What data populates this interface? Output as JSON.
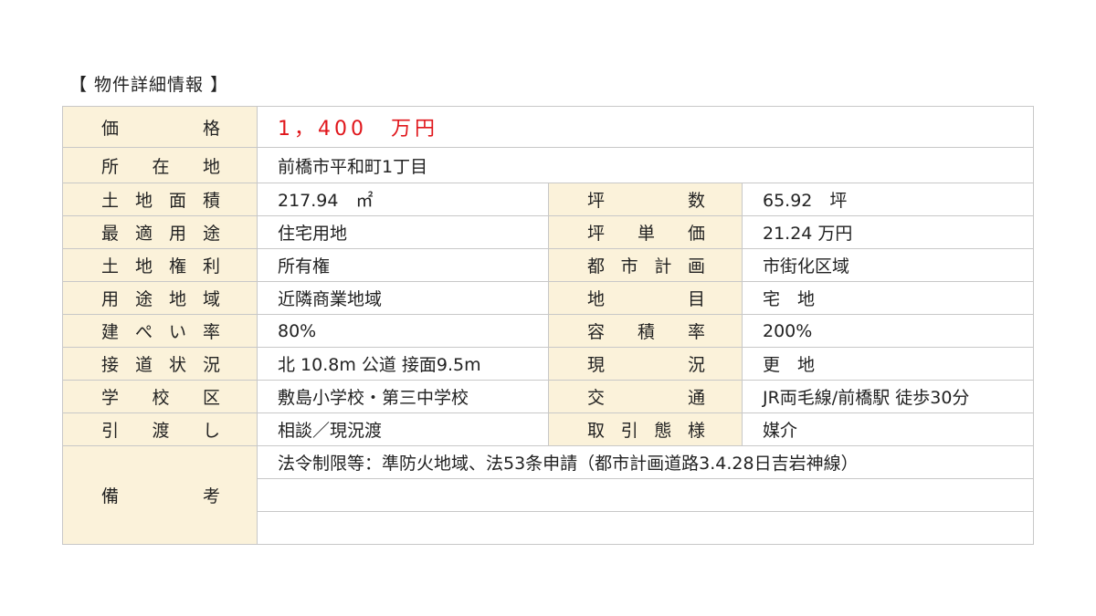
{
  "title": "【 物件詳細情報 】",
  "price": {
    "label": "価格",
    "value": "1，400　万円",
    "color": "#e0161b"
  },
  "address": {
    "label": "所在地",
    "value": "前橋市平和町1丁目"
  },
  "rows": [
    {
      "label1": "土地面積",
      "value1": "217.94　㎡",
      "label2": "坪数",
      "value2": "65.92　坪"
    },
    {
      "label1": "最適用途",
      "value1": "住宅用地",
      "label2": "坪単価",
      "value2": "21.24 万円"
    },
    {
      "label1": "土地権利",
      "value1": "所有権",
      "label2": "都市計画",
      "value2": "市街化区域"
    },
    {
      "label1": "用途地域",
      "value1": "近隣商業地域",
      "label2": "地目",
      "value2": "宅　地"
    },
    {
      "label1": "建ぺい率",
      "value1": "80%",
      "label2": "容積率",
      "value2": "200%"
    },
    {
      "label1": "接道状況",
      "value1": "北 10.8m 公道 接面9.5m",
      "label2": "現況",
      "value2": "更　地"
    },
    {
      "label1": "学校区",
      "value1": "敷島小学校・第三中学校",
      "label2": "交通",
      "value2": "JR両毛線/前橋駅 徒歩30分"
    },
    {
      "label1": "引渡し",
      "value1": "相談／現況渡",
      "label2": "取引態様",
      "value2": "媒介"
    }
  ],
  "remarks": {
    "label": "備考",
    "lines": [
      "法令制限等：準防火地域、法53条申請（都市計画道路3.4.28日吉岩神線）",
      "",
      ""
    ]
  }
}
